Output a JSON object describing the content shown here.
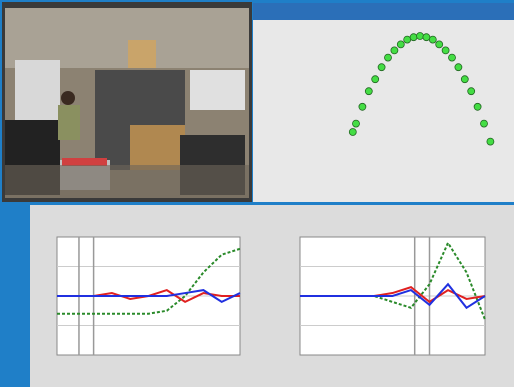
{
  "chart_data": [
    {
      "type": "scatter",
      "color": "#44dd44",
      "x": [
        8,
        10,
        14,
        18,
        22,
        26,
        30,
        34,
        38,
        42,
        46,
        50,
        54,
        58,
        62,
        66,
        70,
        74,
        78,
        82,
        86,
        90,
        94
      ],
      "y": [
        15,
        22,
        36,
        49,
        59,
        69,
        77,
        83,
        88,
        92,
        94,
        95,
        94,
        92,
        88,
        83,
        77,
        69,
        59,
        49,
        36,
        22,
        7
      ],
      "xlim": [
        0,
        100
      ],
      "ylim": [
        0,
        100
      ]
    },
    {
      "type": "line",
      "xlim": [
        0,
        100
      ],
      "ylim": [
        -1,
        1
      ],
      "grid_lines": [
        -0.5,
        0,
        0.5
      ],
      "vlines": [
        12,
        20
      ],
      "x": [
        0,
        10,
        20,
        30,
        40,
        50,
        60,
        70,
        80,
        90,
        100
      ],
      "series": [
        {
          "color": "#2a8a2a",
          "values": [
            -0.3,
            -0.3,
            -0.3,
            -0.3,
            -0.3,
            -0.3,
            -0.25,
            0,
            0.4,
            0.7,
            0.8
          ]
        },
        {
          "color": "#e02020",
          "values": [
            0,
            0,
            0,
            0.05,
            -0.05,
            0,
            0.1,
            -0.1,
            0.05,
            0,
            0
          ]
        },
        {
          "color": "#2030e0",
          "values": [
            0,
            0,
            0,
            0,
            0,
            0,
            0,
            0.05,
            0.1,
            -0.1,
            0.05
          ]
        }
      ]
    },
    {
      "type": "line",
      "xlim": [
        0,
        100
      ],
      "ylim": [
        -1,
        1
      ],
      "grid_lines": [
        -0.5,
        0,
        0.5
      ],
      "vlines": [
        62,
        70
      ],
      "x": [
        0,
        10,
        20,
        30,
        40,
        50,
        60,
        70,
        80,
        90,
        100
      ],
      "series": [
        {
          "color": "#2a8a2a",
          "values": [
            0,
            0,
            0,
            0,
            0,
            -0.1,
            -0.2,
            0.2,
            0.9,
            0.4,
            -0.4
          ]
        },
        {
          "color": "#e02020",
          "values": [
            0,
            0,
            0,
            0,
            0,
            0.05,
            0.15,
            -0.1,
            0.1,
            -0.05,
            0
          ]
        },
        {
          "color": "#2030e0",
          "values": [
            0,
            0,
            0,
            0,
            0,
            0,
            0.1,
            -0.15,
            0.2,
            -0.2,
            0
          ]
        }
      ]
    }
  ]
}
